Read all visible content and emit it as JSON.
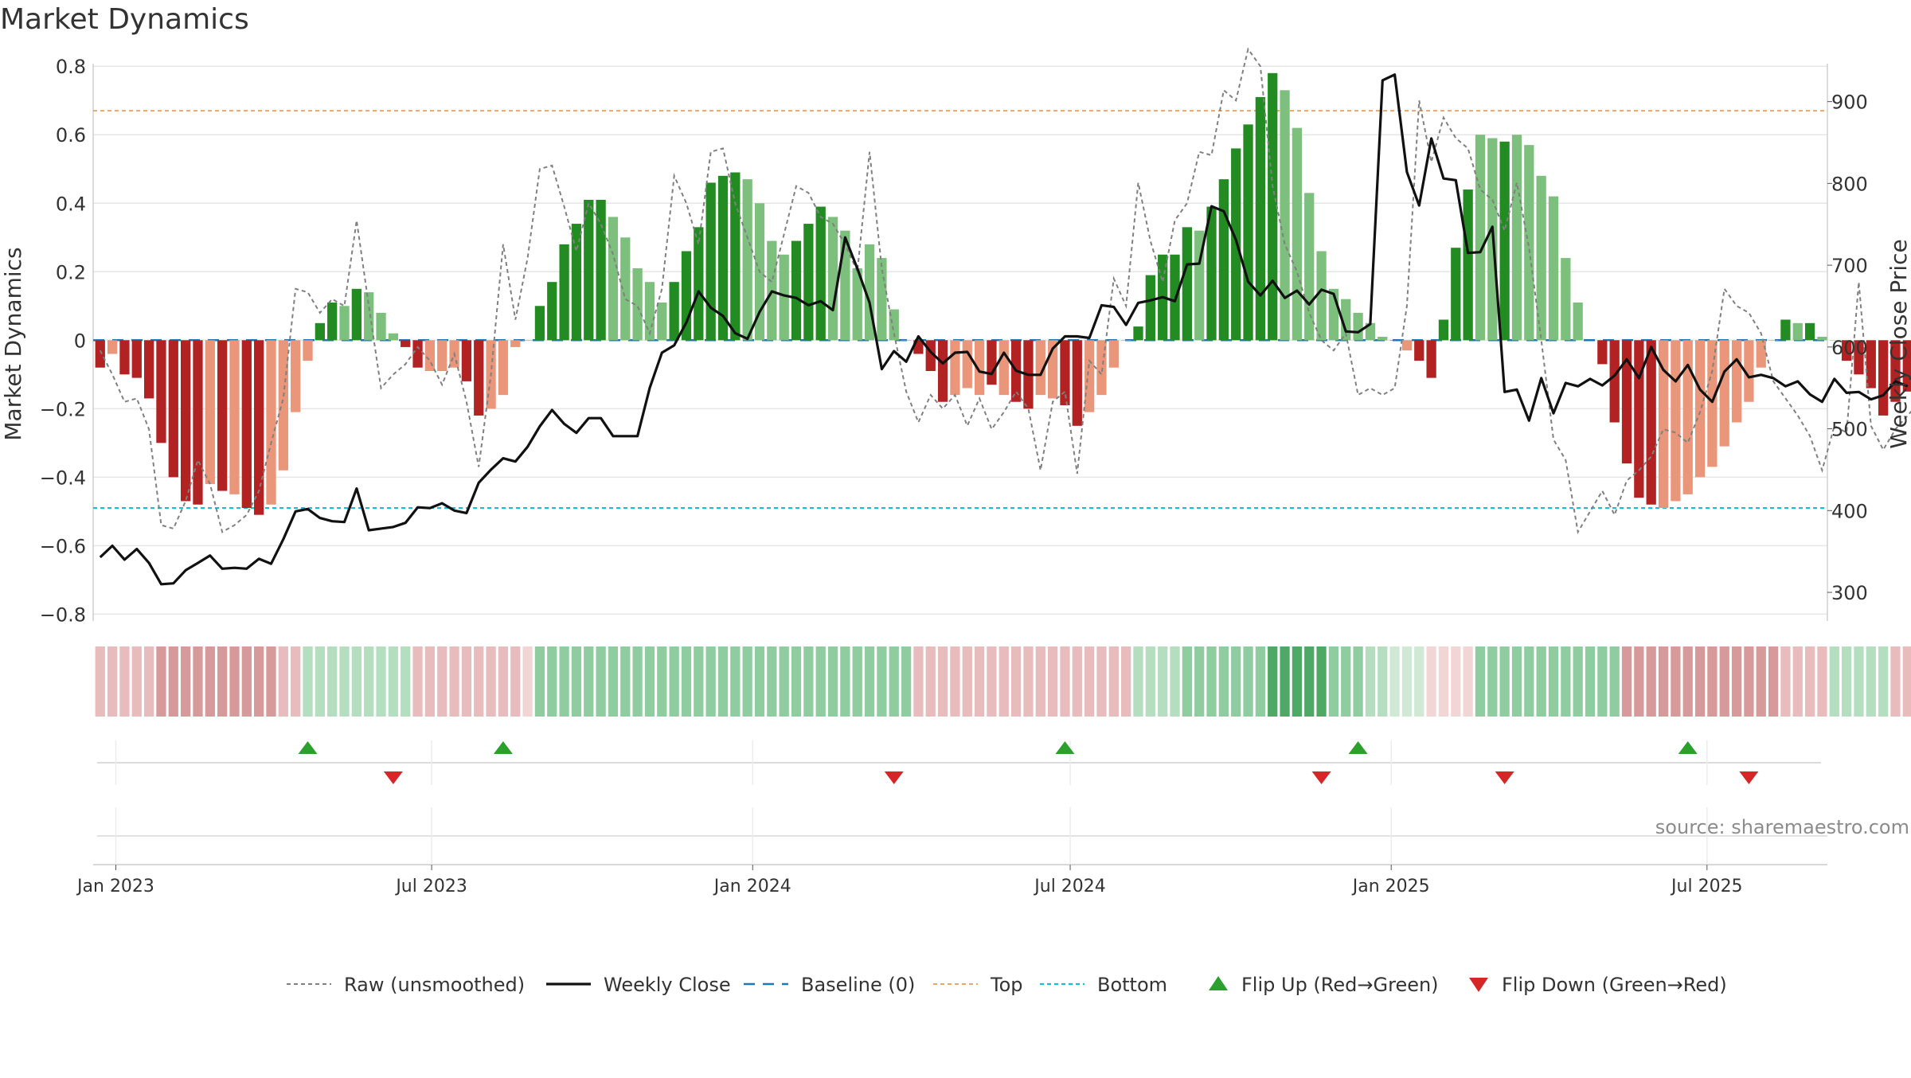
{
  "title": "Market Dynamics",
  "source": "source: sharemaestro.com",
  "colors": {
    "strong_green": "#228b22",
    "light_green": "#7dbf7d",
    "strong_red": "#b22222",
    "light_red": "#e9967a",
    "raw": "#808080",
    "close": "#111111",
    "baseline": "#1f77b4",
    "top": "#e8a86a",
    "bottom": "#17becf",
    "flip_up": "#2ca02c",
    "flip_down": "#d62728",
    "grid": "#e6e6e6"
  },
  "chart_data": {
    "type": "bar",
    "ylabel": "Market Dynamics",
    "y2label": "Weekly Close Price",
    "ylim": [
      -0.82,
      0.84
    ],
    "y2lim": [
      265,
      960
    ],
    "yticks": [
      "−0.8",
      "−0.6",
      "−0.4",
      "−0.2",
      "0",
      "0.2",
      "0.4",
      "0.6",
      "0.8"
    ],
    "y2ticks": [
      "300",
      "400",
      "500",
      "600",
      "700",
      "800",
      "900"
    ],
    "x_start": "2022-12-19",
    "x_end": "2025-09-08",
    "xticks": [
      {
        "date": "2023-01-01",
        "label": "Jan 2023"
      },
      {
        "date": "2023-07-01",
        "label": "Jul 2023"
      },
      {
        "date": "2024-01-01",
        "label": "Jan 2024"
      },
      {
        "date": "2024-07-01",
        "label": "Jul 2024"
      },
      {
        "date": "2025-01-01",
        "label": "Jan 2025"
      },
      {
        "date": "2025-07-01",
        "label": "Jul 2025"
      }
    ],
    "first_week": "2022-12-23",
    "top_level": 0.67,
    "bottom_level": -0.49,
    "baseline": 0,
    "smoothed": [
      -0.08,
      -0.04,
      -0.1,
      -0.11,
      -0.17,
      -0.3,
      -0.4,
      -0.47,
      -0.48,
      -0.42,
      -0.44,
      -0.45,
      -0.49,
      -0.51,
      -0.48,
      -0.38,
      -0.21,
      -0.06,
      0.05,
      0.11,
      0.1,
      0.15,
      0.14,
      0.08,
      0.02,
      -0.02,
      -0.08,
      -0.09,
      -0.09,
      -0.08,
      -0.12,
      -0.22,
      -0.2,
      -0.16,
      -0.02,
      0.0,
      0.1,
      0.17,
      0.28,
      0.34,
      0.41,
      0.41,
      0.36,
      0.3,
      0.21,
      0.17,
      0.11,
      0.17,
      0.26,
      0.33,
      0.46,
      0.48,
      0.49,
      0.47,
      0.4,
      0.29,
      0.25,
      0.29,
      0.34,
      0.39,
      0.36,
      0.32,
      0.21,
      0.28,
      0.24,
      0.09,
      0.0,
      -0.04,
      -0.09,
      -0.18,
      -0.16,
      -0.14,
      -0.16,
      -0.13,
      -0.16,
      -0.18,
      -0.2,
      -0.16,
      -0.17,
      -0.19,
      -0.25,
      -0.21,
      -0.16,
      -0.08,
      0.0,
      0.04,
      0.19,
      0.25,
      0.25,
      0.33,
      0.32,
      0.39,
      0.47,
      0.56,
      0.63,
      0.71,
      0.78,
      0.73,
      0.62,
      0.43,
      0.26,
      0.15,
      0.12,
      0.08,
      0.05,
      0.01,
      0.0,
      -0.03,
      -0.06,
      -0.11,
      0.06,
      0.27,
      0.44,
      0.6,
      0.59,
      0.58,
      0.6,
      0.57,
      0.48,
      0.42,
      0.24,
      0.11,
      0.0,
      -0.07,
      -0.24,
      -0.36,
      -0.46,
      -0.48,
      -0.49,
      -0.47,
      -0.45,
      -0.4,
      -0.37,
      -0.31,
      -0.24,
      -0.18,
      -0.08,
      0.0,
      0.06,
      0.05,
      0.05,
      0.01,
      0.0,
      -0.06,
      -0.1,
      -0.14,
      -0.22,
      -0.18,
      -0.15,
      -0.18,
      -0.14,
      -0.14,
      -0.2,
      -0.17,
      -0.13
    ],
    "bar_shade": [
      "s",
      "l",
      "s",
      "s",
      "s",
      "s",
      "s",
      "s",
      "s",
      "l",
      "s",
      "l",
      "s",
      "s",
      "l",
      "l",
      "l",
      "l",
      "s",
      "s",
      "l",
      "s",
      "l",
      "l",
      "l",
      "s",
      "s",
      "l",
      "l",
      "l",
      "s",
      "s",
      "l",
      "l",
      "l",
      "l",
      "s",
      "s",
      "s",
      "s",
      "s",
      "s",
      "l",
      "l",
      "l",
      "l",
      "l",
      "s",
      "s",
      "s",
      "s",
      "s",
      "s",
      "l",
      "l",
      "l",
      "l",
      "s",
      "s",
      "s",
      "l",
      "l",
      "l",
      "l",
      "l",
      "l",
      "l",
      "s",
      "s",
      "s",
      "l",
      "l",
      "l",
      "s",
      "l",
      "s",
      "s",
      "l",
      "l",
      "s",
      "s",
      "l",
      "l",
      "l",
      "l",
      "s",
      "s",
      "s",
      "s",
      "s",
      "l",
      "s",
      "s",
      "s",
      "s",
      "s",
      "s",
      "l",
      "l",
      "l",
      "l",
      "l",
      "l",
      "l",
      "l",
      "l",
      "s",
      "l",
      "s",
      "s",
      "s",
      "s",
      "s",
      "l",
      "l",
      "s",
      "l",
      "l",
      "l",
      "l",
      "l",
      "l",
      "s",
      "s",
      "s",
      "s",
      "s",
      "s",
      "l",
      "l",
      "l",
      "l",
      "l",
      "l",
      "l",
      "l",
      "l",
      "l",
      "s",
      "l",
      "s",
      "l",
      "l",
      "s",
      "s",
      "s",
      "s",
      "s",
      "s",
      "s",
      "s",
      "l",
      "l",
      "l",
      "l"
    ],
    "raw": [
      -0.03,
      -0.1,
      -0.18,
      -0.17,
      -0.26,
      -0.54,
      -0.55,
      -0.47,
      -0.35,
      -0.42,
      -0.56,
      -0.54,
      -0.51,
      -0.44,
      -0.3,
      -0.17,
      0.15,
      0.14,
      0.08,
      0.12,
      0.1,
      0.35,
      0.1,
      -0.14,
      -0.1,
      -0.07,
      -0.02,
      -0.06,
      -0.13,
      -0.04,
      -0.18,
      -0.37,
      -0.1,
      0.28,
      0.06,
      0.24,
      0.5,
      0.51,
      0.39,
      0.26,
      0.4,
      0.34,
      0.25,
      0.12,
      0.1,
      0.02,
      0.15,
      0.48,
      0.4,
      0.28,
      0.55,
      0.56,
      0.4,
      0.3,
      0.2,
      0.17,
      0.31,
      0.45,
      0.43,
      0.36,
      0.34,
      0.28,
      0.2,
      0.55,
      0.21,
      0.02,
      -0.15,
      -0.24,
      -0.16,
      -0.2,
      -0.16,
      -0.25,
      -0.17,
      -0.26,
      -0.21,
      -0.15,
      -0.2,
      -0.38,
      -0.18,
      -0.15,
      -0.39,
      -0.06,
      -0.1,
      0.18,
      0.1,
      0.46,
      0.29,
      0.17,
      0.35,
      0.4,
      0.55,
      0.54,
      0.73,
      0.7,
      0.85,
      0.8,
      0.45,
      0.28,
      0.2,
      0.08,
      0.0,
      -0.03,
      0.02,
      -0.16,
      -0.14,
      -0.16,
      -0.14,
      0.1,
      0.7,
      0.52,
      0.65,
      0.59,
      0.56,
      0.44,
      0.41,
      0.32,
      0.46,
      0.27,
      0.0,
      -0.29,
      -0.35,
      -0.56,
      -0.5,
      -0.44,
      -0.51,
      -0.41,
      -0.38,
      -0.34,
      -0.26,
      -0.27,
      -0.3,
      -0.21,
      -0.09,
      0.15,
      0.1,
      0.08,
      0.02,
      -0.12,
      -0.17,
      -0.22,
      -0.28,
      -0.38,
      -0.25,
      -0.27,
      0.17,
      -0.25,
      -0.32,
      -0.26,
      -0.22,
      -0.18,
      -0.08
    ],
    "close": [
      343,
      357,
      340,
      353,
      336,
      310,
      311,
      327,
      336,
      345,
      329,
      330,
      329,
      341,
      335,
      365,
      399,
      402,
      391,
      387,
      386,
      427,
      376,
      378,
      380,
      385,
      404,
      403,
      409,
      400,
      397,
      434,
      450,
      464,
      460,
      478,
      503,
      523,
      506,
      495,
      513,
      513,
      491,
      491,
      491,
      550,
      593,
      602,
      630,
      668,
      648,
      638,
      617,
      610,
      643,
      668,
      663,
      660,
      651,
      656,
      645,
      734,
      696,
      654,
      573,
      595,
      582,
      613,
      594,
      580,
      593,
      594,
      570,
      567,
      593,
      571,
      566,
      566,
      598,
      613,
      613,
      611,
      651,
      649,
      627,
      654,
      657,
      661,
      656,
      701,
      702,
      772,
      766,
      731,
      680,
      663,
      681,
      660,
      669,
      652,
      670,
      665,
      619,
      618,
      628,
      926,
      933,
      814,
      773,
      855,
      806,
      804,
      715,
      716,
      747,
      545,
      548,
      510,
      562,
      519,
      556,
      552,
      561,
      553,
      565,
      585,
      562,
      600,
      572,
      558,
      578,
      548,
      533,
      570,
      585,
      563,
      566,
      562,
      552,
      558,
      542,
      533,
      561,
      544,
      545,
      536,
      541,
      558,
      552
    ],
    "heat_bands": [
      "light_red",
      "light_red",
      "light_red",
      "light_red",
      "light_red",
      "red",
      "red",
      "red",
      "red",
      "red",
      "red",
      "red",
      "red",
      "red",
      "red",
      "light_red",
      "light_red",
      "light_green",
      "light_green",
      "light_green",
      "light_green",
      "light_green",
      "light_green",
      "light_green",
      "light_green",
      "light_green",
      "light_red",
      "light_red",
      "light_red",
      "light_red",
      "light_red",
      "light_red",
      "light_red",
      "light_red",
      "light_red",
      "faint_red",
      "green",
      "green",
      "green",
      "green",
      "green",
      "green",
      "green",
      "green",
      "green",
      "green",
      "green",
      "green",
      "green",
      "green",
      "green",
      "green",
      "green",
      "green",
      "green",
      "green",
      "green",
      "green",
      "green",
      "green",
      "green",
      "green",
      "green",
      "green",
      "green",
      "green",
      "green",
      "light_red",
      "light_red",
      "light_red",
      "light_red",
      "light_red",
      "light_red",
      "light_red",
      "light_red",
      "light_red",
      "light_red",
      "light_red",
      "light_red",
      "light_red",
      "light_red",
      "light_red",
      "light_red",
      "light_red",
      "light_red",
      "light_green",
      "light_green",
      "light_green",
      "light_green",
      "green",
      "green",
      "green",
      "green",
      "green",
      "green",
      "green",
      "dark_green",
      "dark_green",
      "dark_green",
      "dark_green",
      "dark_green",
      "green",
      "green",
      "green",
      "light_green",
      "light_green",
      "faint_green",
      "faint_green",
      "faint_green",
      "faint_red",
      "faint_red",
      "faint_red",
      "faint_red",
      "green",
      "green",
      "green",
      "green",
      "green",
      "green",
      "green",
      "green",
      "green",
      "green",
      "green",
      "green",
      "red",
      "red",
      "red",
      "red",
      "red",
      "red",
      "red",
      "red",
      "red",
      "red",
      "red",
      "red",
      "red",
      "light_red",
      "light_red",
      "light_red",
      "light_red",
      "light_green",
      "light_green",
      "light_green",
      "light_green",
      "light_green",
      "light_red",
      "light_red",
      "light_red",
      "light_red",
      "light_red",
      "light_red",
      "light_red",
      "light_red",
      "light_red",
      "light_red",
      "light_red",
      "light_red",
      "light_red",
      "light_red",
      "light_red",
      "light_red"
    ],
    "flip_up_dates": [
      "2023-04-21",
      "2023-08-11",
      "2024-06-28",
      "2024-12-13",
      "2025-06-20"
    ],
    "flip_down_dates": [
      "2023-06-09",
      "2024-03-22",
      "2024-11-22",
      "2025-03-07",
      "2025-07-25"
    ],
    "legend": [
      {
        "kind": "raw",
        "label": "Raw (unsmoothed)"
      },
      {
        "kind": "close",
        "label": "Weekly Close"
      },
      {
        "kind": "baseline",
        "label": "Baseline (0)"
      },
      {
        "kind": "top",
        "label": "Top"
      },
      {
        "kind": "bottom",
        "label": "Bottom"
      },
      {
        "kind": "flip_up",
        "label": "Flip Up (Red→Green)"
      },
      {
        "kind": "flip_down",
        "label": "Flip Down (Green→Red)"
      }
    ],
    "legend_position": "bottom-center",
    "grid": true
  }
}
